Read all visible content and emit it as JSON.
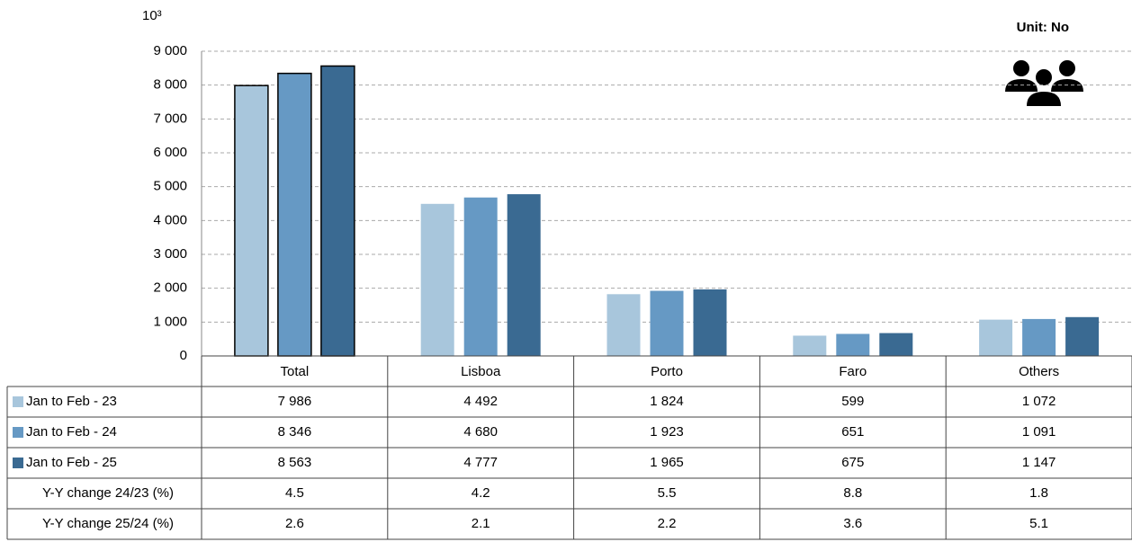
{
  "chart_data": {
    "type": "bar",
    "title": "Unit: No",
    "y_unit_label": "10³",
    "categories": [
      "Total",
      "Lisboa",
      "Porto",
      "Faro",
      "Others"
    ],
    "outlined": [
      true,
      false,
      false,
      false,
      false
    ],
    "series": [
      {
        "name": "Jan to Feb - 23",
        "color": "#a8c6dc",
        "values": [
          7986,
          4492,
          1824,
          599,
          1072
        ],
        "value_labels": [
          "7 986",
          "4 492",
          "1 824",
          "599",
          "1 072"
        ]
      },
      {
        "name": "Jan to Feb - 24",
        "color": "#6699c4",
        "values": [
          8346,
          4680,
          1923,
          651,
          1091
        ],
        "value_labels": [
          "8 346",
          "4 680",
          "1 923",
          "651",
          "1 091"
        ]
      },
      {
        "name": "Jan to Feb - 25",
        "color": "#3a6a92",
        "values": [
          8563,
          4777,
          1965,
          675,
          1147
        ],
        "value_labels": [
          "8 563",
          "4 777",
          "1 965",
          "675",
          "1 147"
        ]
      }
    ],
    "table_rows": [
      {
        "name": "Y-Y change 24/23 (%)",
        "values": [
          4.5,
          4.2,
          5.5,
          8.8,
          1.8
        ]
      },
      {
        "name": "Y-Y change 25/24 (%)",
        "values": [
          2.6,
          2.1,
          2.2,
          3.6,
          5.1
        ]
      }
    ],
    "ylim": [
      0,
      9000
    ],
    "yticks": [
      0,
      {
        "value": 1000,
        "label": "1 000"
      },
      {
        "value": 2000,
        "label": "2 000"
      },
      {
        "value": 3000,
        "label": "3 000"
      },
      {
        "value": 4000,
        "label": "4 000"
      },
      {
        "value": 5000,
        "label": "5 000"
      },
      {
        "value": 6000,
        "label": "6 000"
      },
      {
        "value": 7000,
        "label": "7 000"
      },
      {
        "value": 8000,
        "label": "8 000"
      },
      {
        "value": 9000,
        "label": "9 000"
      }
    ],
    "grid": true
  }
}
